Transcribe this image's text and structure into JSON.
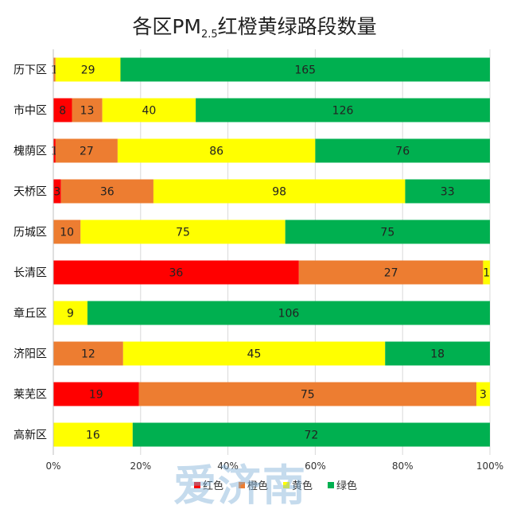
{
  "title": {
    "main": "各区PM",
    "subscript": "2.5",
    "suffix": "红橙黄绿路段数量"
  },
  "watermark": "爱济南",
  "colors": {
    "red": "#ff0000",
    "orange": "#ed7d31",
    "yellow": "#ffff00",
    "green": "#00b050"
  },
  "chart_data": {
    "type": "bar",
    "orientation": "horizontal",
    "stacked": "percent",
    "categories": [
      "历下区",
      "市中区",
      "槐荫区",
      "天桥区",
      "历城区",
      "长清区",
      "章丘区",
      "济阳区",
      "莱芜区",
      "高新区"
    ],
    "series": [
      {
        "name": "红色",
        "color": "#ff0000",
        "values": [
          0,
          8,
          1,
          3,
          0,
          36,
          0,
          0,
          19,
          0
        ]
      },
      {
        "name": "橙色",
        "color": "#ed7d31",
        "values": [
          1,
          13,
          27,
          36,
          10,
          27,
          0,
          12,
          75,
          0
        ]
      },
      {
        "name": "黄色",
        "color": "#ffff00",
        "values": [
          29,
          40,
          86,
          98,
          75,
          1,
          9,
          45,
          3,
          16
        ]
      },
      {
        "name": "绿色",
        "color": "#00b050",
        "values": [
          165,
          126,
          76,
          33,
          75,
          0,
          106,
          18,
          0,
          72
        ]
      }
    ],
    "x_ticks": [
      "0%",
      "20%",
      "40%",
      "60%",
      "80%",
      "100%"
    ],
    "xlim": [
      0,
      100
    ],
    "grid": "vertical",
    "legend": "bottom",
    "data_labels": true
  }
}
